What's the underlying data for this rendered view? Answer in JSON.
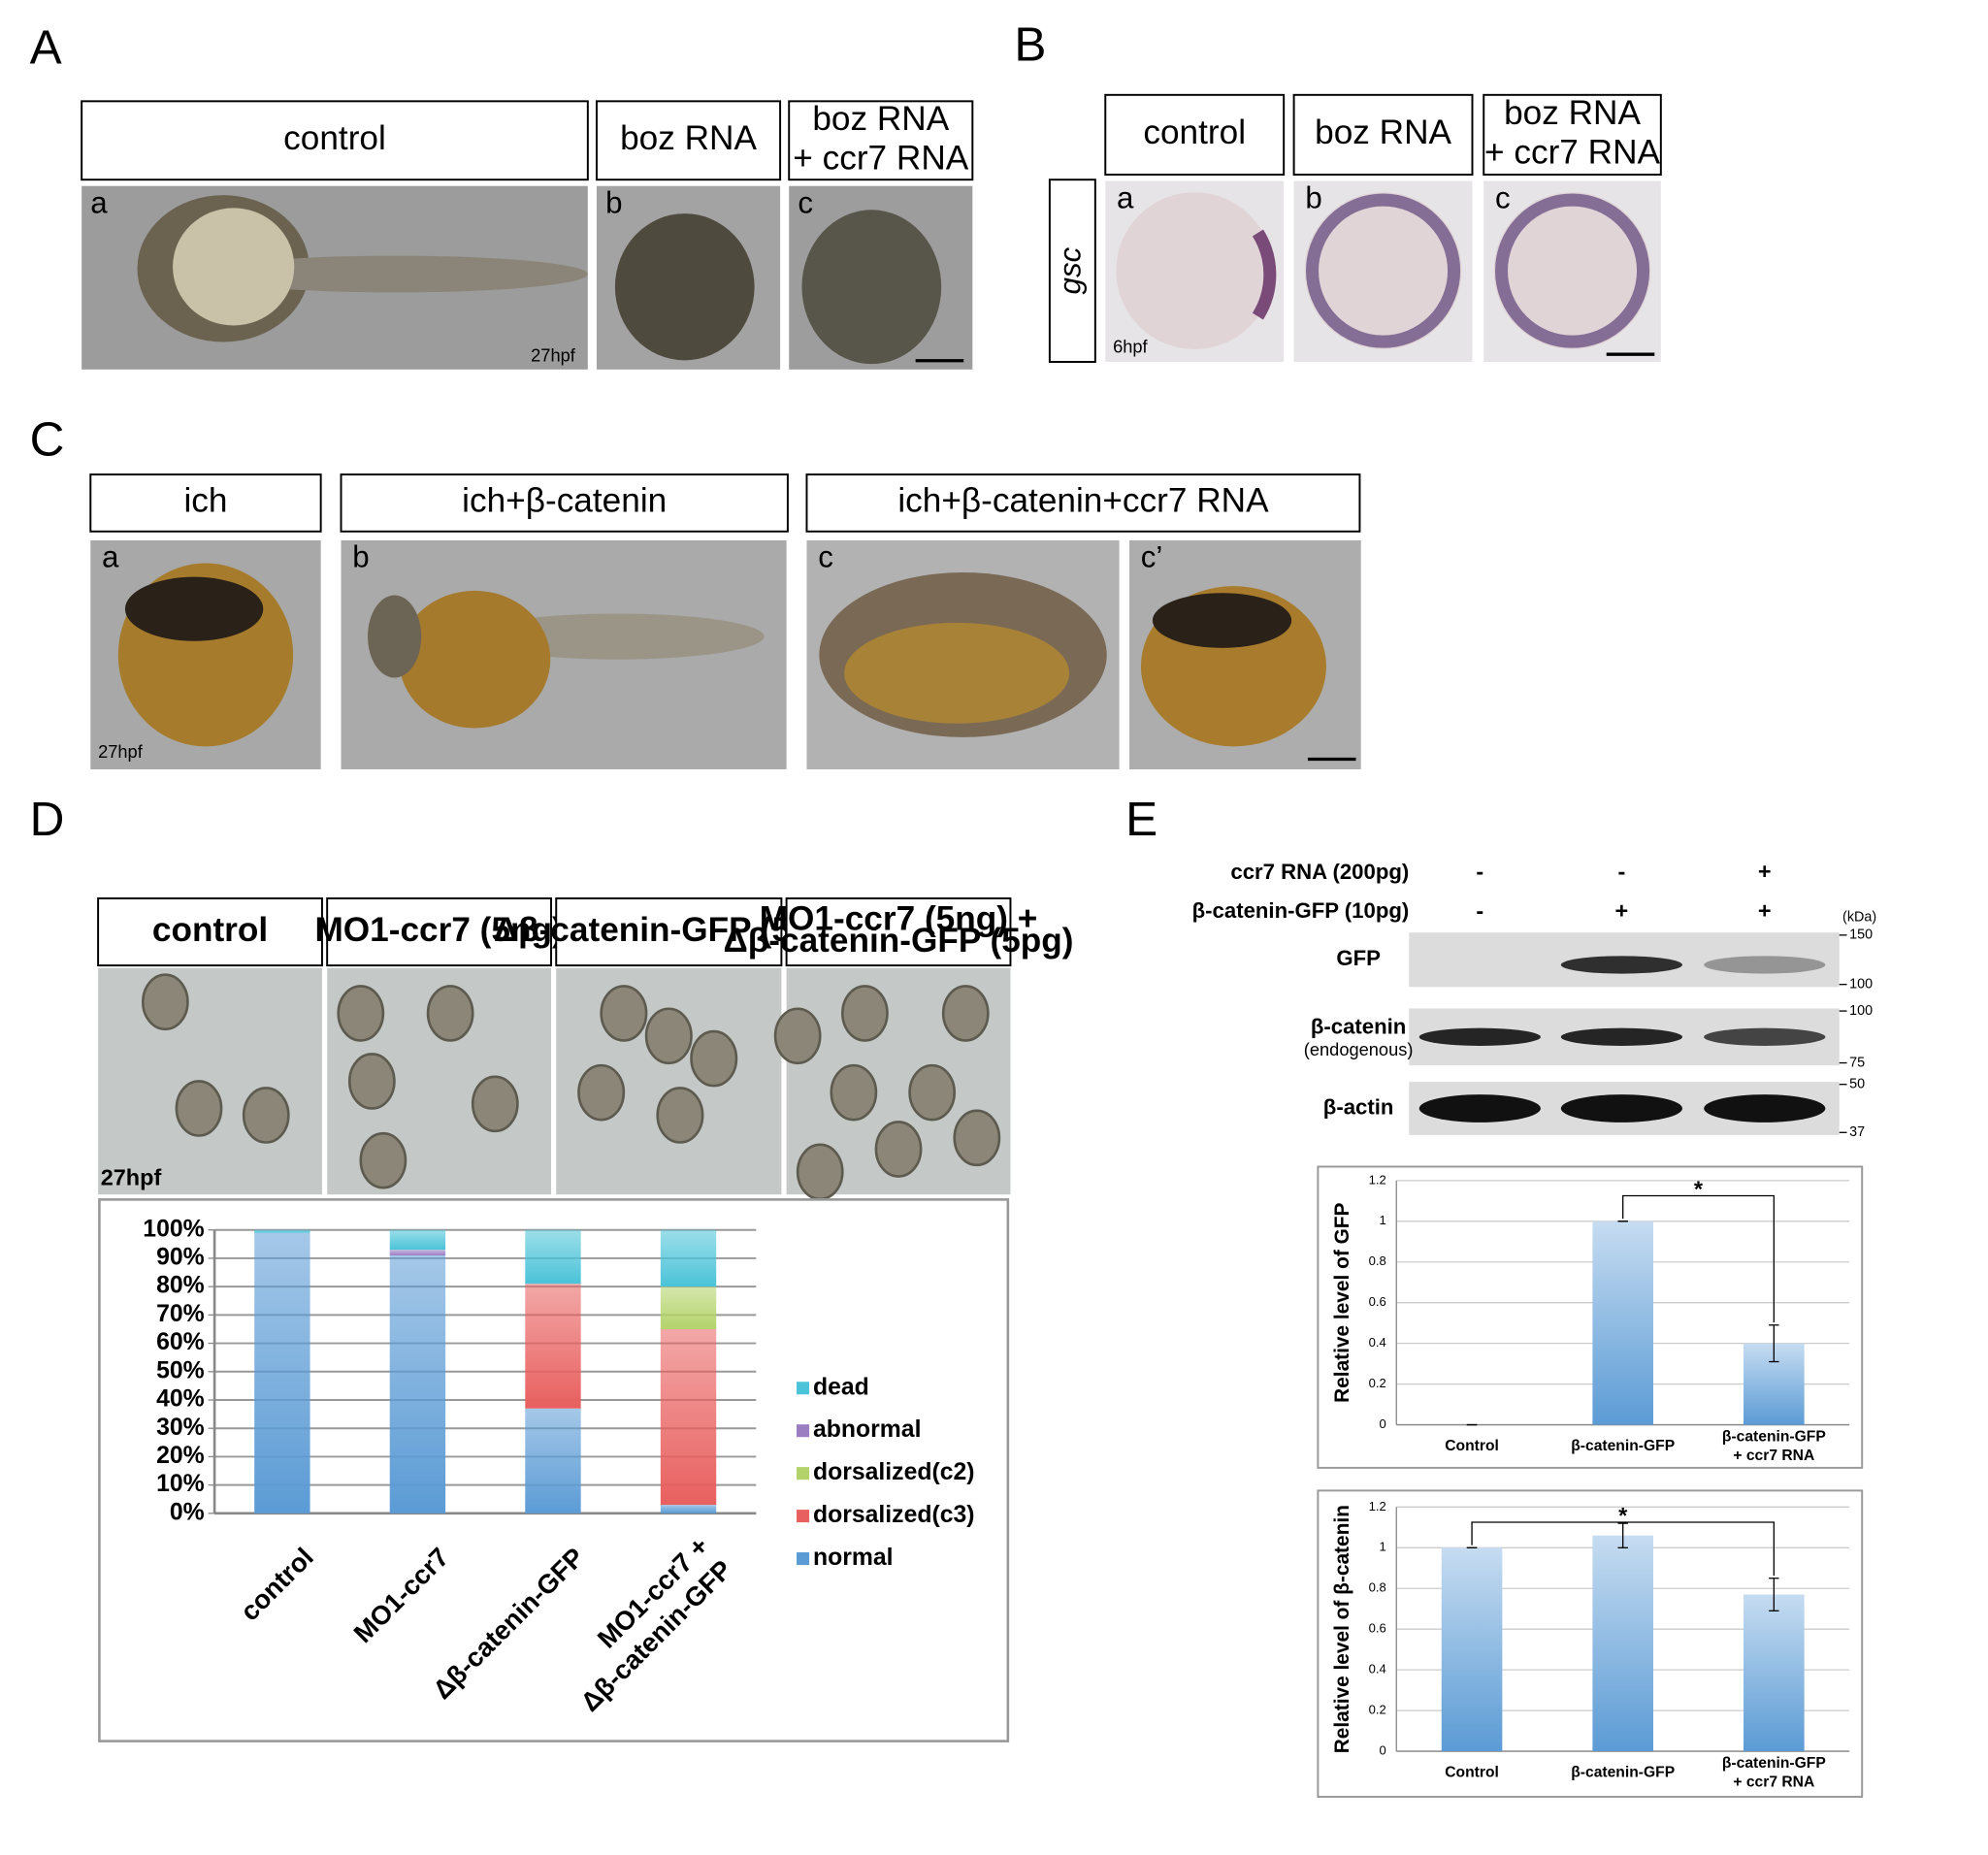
{
  "panels": {
    "A": {
      "label": "A",
      "headers": [
        "control",
        "boz RNA",
        [
          "boz RNA",
          "+ ccr7 RNA"
        ]
      ],
      "sublabels": [
        "a",
        "b",
        "c"
      ],
      "stage": "27hpf"
    },
    "B": {
      "label": "B",
      "headers": [
        "control",
        "boz RNA",
        [
          "boz RNA",
          "+ ccr7 RNA"
        ]
      ],
      "marker": "gsc",
      "sublabels": [
        "a",
        "b",
        "c"
      ],
      "stage": "6hpf"
    },
    "C": {
      "label": "C",
      "headers": [
        "ich",
        "ich+β-catenin",
        "ich+β-catenin+ccr7 RNA"
      ],
      "sublabels": [
        "a",
        "b",
        "c",
        "c’"
      ],
      "stage": "27hpf"
    },
    "D": {
      "label": "D",
      "headers": [
        "control",
        "MO1-ccr7 (5ng)",
        "Δβ-catenin-GFP (5pg)",
        [
          "MO1-ccr7 (5ng) +",
          "Δβ-catenin-GFP (5pg)"
        ]
      ],
      "stage": "27hpf"
    },
    "E": {
      "label": "E",
      "conditions": [
        {
          "name": "ccr7 RNA (200pg)",
          "signs": [
            "-",
            "-",
            "+"
          ]
        },
        {
          "name": "β-catenin-GFP (10pg)",
          "signs": [
            "-",
            "+",
            "+"
          ]
        }
      ],
      "unit": "(kDa)",
      "blots": [
        {
          "name": "GFP",
          "markers": [
            150,
            100
          ]
        },
        {
          "name": "β-catenin",
          "note": "(endogenous)",
          "markers": [
            100,
            75
          ]
        },
        {
          "name": "β-actin",
          "markers": [
            50,
            37
          ]
        }
      ]
    }
  },
  "chart_data": [
    {
      "type": "stacked_bar",
      "categories": [
        "control",
        "MO1-ccr7",
        "Δβ-catenin-GFP",
        "MO1-ccr7 + Δβ-catenin-GFP"
      ],
      "series": [
        {
          "name": "normal",
          "color": "#5b9bd5",
          "values": [
            99,
            91,
            37,
            3
          ]
        },
        {
          "name": "dorsalized(c3)",
          "color": "#e8605f",
          "values": [
            0,
            0,
            44,
            62
          ]
        },
        {
          "name": "dorsalized(c2)",
          "color": "#b3d36a",
          "values": [
            0,
            0,
            0,
            15
          ]
        },
        {
          "name": "abnormal",
          "color": "#9b7ec2",
          "values": [
            0,
            2,
            0,
            0
          ]
        },
        {
          "name": "dead",
          "color": "#4bc3d8",
          "values": [
            1,
            7,
            19,
            20
          ]
        }
      ],
      "ylim": [
        0,
        100
      ],
      "yticks": [
        {
          "value": 0,
          "label": "0%"
        },
        {
          "value": 10,
          "label": "10%"
        },
        {
          "value": 20,
          "label": "20%"
        },
        {
          "value": 30,
          "label": "30%"
        },
        {
          "value": 40,
          "label": "40%"
        },
        {
          "value": 50,
          "label": "50%"
        },
        {
          "value": 60,
          "label": "60%"
        },
        {
          "value": 70,
          "label": "70%"
        },
        {
          "value": 80,
          "label": "80%"
        },
        {
          "value": 90,
          "label": "90%"
        },
        {
          "value": 100,
          "label": "100%"
        }
      ],
      "grid": true,
      "legend": "right"
    },
    {
      "type": "bar",
      "ylabel": "Relative level of GFP",
      "categories": [
        "Control",
        "β-catenin-GFP",
        "β-catenin-GFP + ccr7 RNA"
      ],
      "values": [
        0,
        1,
        0.4
      ],
      "errors": [
        0,
        0,
        0.09
      ],
      "color": "#5b9bd5",
      "ylim": [
        0,
        1.2
      ],
      "yticks": [
        0,
        0.2,
        0.4,
        0.6,
        0.8,
        1,
        1.2
      ],
      "grid": true,
      "annotations": [
        {
          "text": "*",
          "from": 1,
          "to": 2
        }
      ]
    },
    {
      "type": "bar",
      "ylabel": "Relative level of β-catenin",
      "categories": [
        "Control",
        "β-catenin-GFP",
        "β-catenin-GFP + ccr7 RNA"
      ],
      "values": [
        1,
        1.06,
        0.77
      ],
      "errors": [
        0,
        0.06,
        0.08
      ],
      "color": "#5b9bd5",
      "ylim": [
        0,
        1.2
      ],
      "yticks": [
        0,
        0.2,
        0.4,
        0.6,
        0.8,
        1,
        1.2
      ],
      "grid": true,
      "annotations": [
        {
          "text": "*",
          "from": 0,
          "to": 2
        }
      ]
    }
  ]
}
